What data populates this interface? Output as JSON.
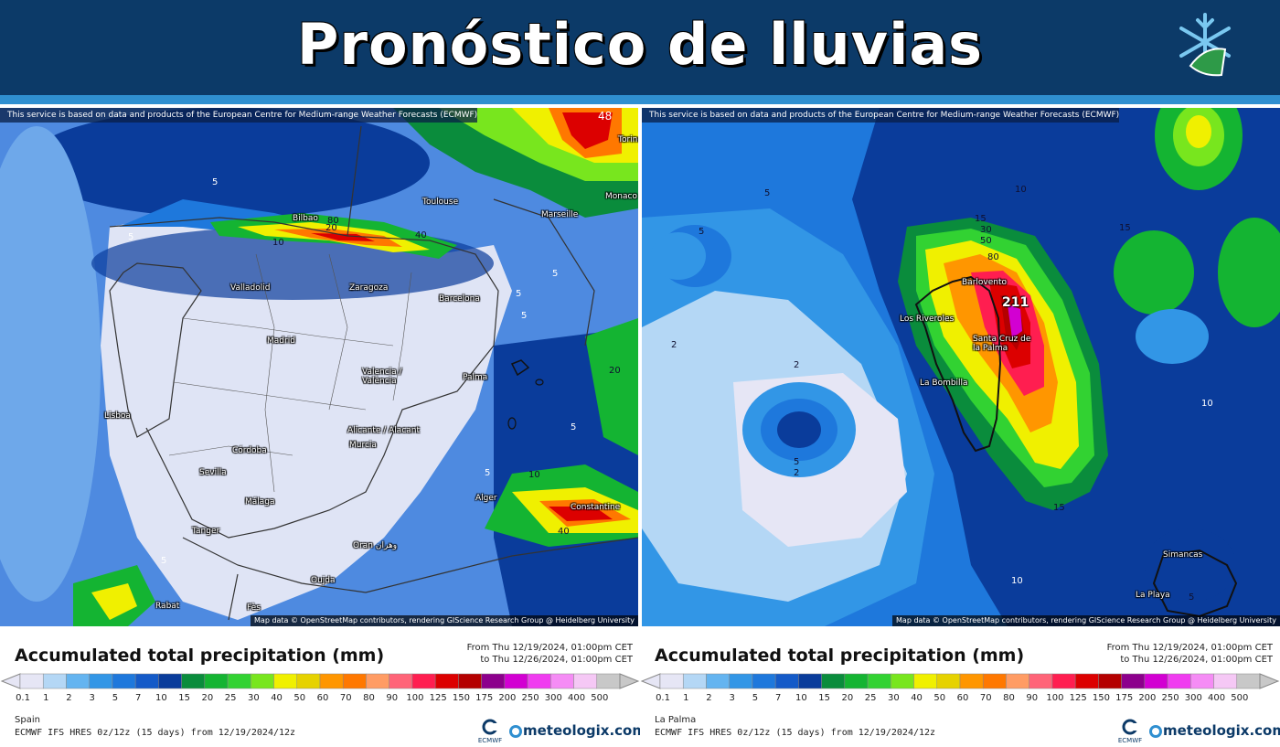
{
  "header": {
    "title": "Pronóstico de lluvias",
    "brand_color": "#0c3a68",
    "icon": "snowflake-icon"
  },
  "maps": [
    {
      "region": "Spain",
      "disclaimer": "This service is based on data and products of the European Centre for Medium-range Weather Forecasts (ECMWF)",
      "attribution": "Map data © OpenStreetMap contributors, rendering GIScience Research Group @ Heidelberg University",
      "cities": [
        "Toulouse",
        "Bilbao",
        "Marseille",
        "Monaco",
        "Torino",
        "Valladolid",
        "Zaragoza",
        "Barcelona",
        "Madrid",
        "Valencia / València",
        "Palma",
        "Lisboa",
        "Córdoba",
        "Sevilla",
        "Alicante / Alacant",
        "Murcia",
        "Málaga",
        "Alger",
        "Constantine",
        "Tanger",
        "Oran وهران",
        "Rabat",
        "Fès",
        "Oujda"
      ],
      "contour_labels": [
        "5",
        "5",
        "10",
        "20",
        "40",
        "80",
        "5",
        "5",
        "5",
        "5",
        "10",
        "20",
        "5",
        "5",
        "40",
        "48"
      ]
    },
    {
      "region": "La Palma",
      "disclaimer": "This service is based on data and products of the European Centre for Medium-range Weather Forecasts (ECMWF)",
      "attribution": "Map data © OpenStreetMap contributors, rendering GIScience Research Group @ Heidelberg University",
      "cities": [
        "Barlovento",
        "Los Riveroles",
        "Santa Cruz de la Palma",
        "La Bombilla",
        "Simancas",
        "La Playa"
      ],
      "contour_labels": [
        "5",
        "5",
        "2",
        "2",
        "5",
        "2",
        "10",
        "15",
        "30",
        "50",
        "80",
        "15",
        "15",
        "10",
        "10",
        "5"
      ],
      "max_value": "211"
    }
  ],
  "legend": {
    "title": "Accumulated total precipitation (mm)",
    "date_from": "From Thu 12/19/2024, 01:00pm CET",
    "date_to": "to Thu 12/26/2024, 01:00pm CET",
    "model": "ECMWF IFS HRES 0z/12z (15 days) from 12/19/2024/12z",
    "ticks": [
      "0.1",
      "1",
      "2",
      "3",
      "5",
      "7",
      "10",
      "15",
      "20",
      "25",
      "30",
      "40",
      "50",
      "60",
      "70",
      "80",
      "90",
      "100",
      "125",
      "150",
      "175",
      "200",
      "250",
      "300",
      "400",
      "500"
    ],
    "colors": [
      "#e6e6f5",
      "#b4d7f5",
      "#64b4f0",
      "#3296e6",
      "#1e78dc",
      "#145ac8",
      "#0a3c9b",
      "#0a8c3c",
      "#14b432",
      "#32d232",
      "#78e61e",
      "#f0f000",
      "#e6d200",
      "#ff9600",
      "#ff7800",
      "#ff9c64",
      "#ff6478",
      "#ff1e50",
      "#dc0000",
      "#b40000",
      "#8c008c",
      "#d200d2",
      "#f03cf0",
      "#f58cf5",
      "#f5c8f5",
      "#c8c8c8"
    ],
    "brand": "meteologix.com",
    "ecmwf_label": "ECMWF"
  }
}
